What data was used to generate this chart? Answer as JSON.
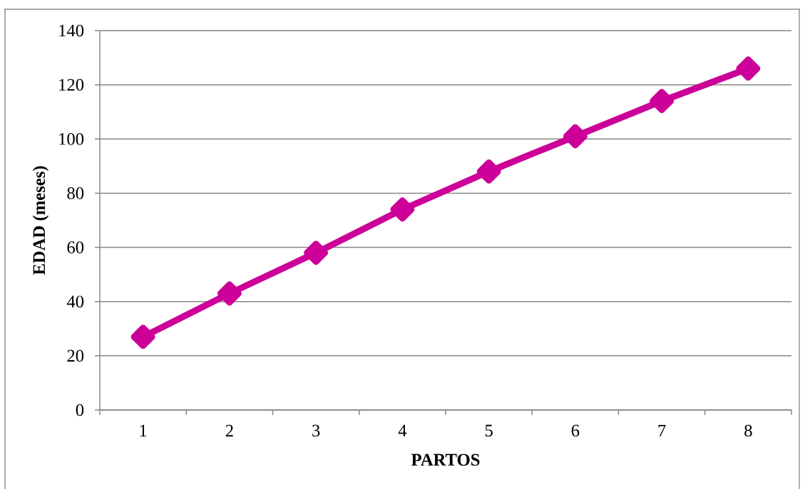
{
  "chart_data": {
    "type": "line",
    "xlabel": "PARTOS",
    "ylabel": "EDAD (meses)",
    "categories": [
      "1",
      "2",
      "3",
      "4",
      "5",
      "6",
      "7",
      "8"
    ],
    "series": [
      {
        "color": "#cc0099",
        "values": [
          27,
          43,
          58,
          74,
          88,
          101,
          114,
          126
        ]
      }
    ],
    "ylim": [
      0,
      140
    ],
    "yticks": [
      0,
      20,
      40,
      60,
      80,
      100,
      120,
      140
    ],
    "grid": "y",
    "marker": "diamond",
    "line_style": "solid"
  }
}
